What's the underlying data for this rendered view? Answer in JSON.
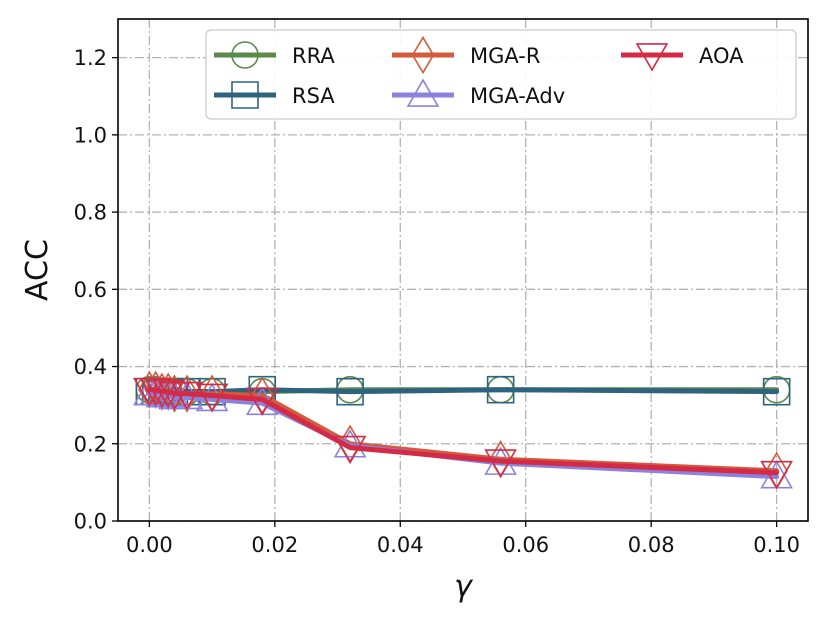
{
  "chart_data": {
    "type": "line",
    "xlabel": "γ",
    "ylabel": "ACC",
    "xlim": [
      -0.005,
      0.105
    ],
    "ylim": [
      0.0,
      1.3
    ],
    "xticks": [
      0.0,
      0.02,
      0.04,
      0.06,
      0.08,
      0.1
    ],
    "xtick_labels": [
      "0.00",
      "0.02",
      "0.04",
      "0.06",
      "0.08",
      "0.10"
    ],
    "yticks": [
      0.0,
      0.2,
      0.4,
      0.6,
      0.8,
      1.0,
      1.2
    ],
    "ytick_labels": [
      "0.0",
      "0.2",
      "0.4",
      "0.6",
      "0.8",
      "1.0",
      "1.2"
    ],
    "grid": true,
    "legend_position": "top-right",
    "series": [
      {
        "name": "RRA",
        "color": "#5a8a4a",
        "marker": "circle",
        "x": [
          0.0,
          0.001,
          0.002,
          0.003,
          0.004,
          0.006,
          0.01,
          0.018,
          0.032,
          0.056,
          0.1
        ],
        "y": [
          0.34,
          0.34,
          0.335,
          0.335,
          0.335,
          0.335,
          0.335,
          0.335,
          0.34,
          0.34,
          0.34
        ]
      },
      {
        "name": "RSA",
        "color": "#2e6380",
        "marker": "square",
        "x": [
          0.0,
          0.001,
          0.002,
          0.003,
          0.004,
          0.006,
          0.01,
          0.018,
          0.032,
          0.056,
          0.1
        ],
        "y": [
          0.335,
          0.335,
          0.335,
          0.335,
          0.335,
          0.335,
          0.335,
          0.34,
          0.335,
          0.34,
          0.335
        ]
      },
      {
        "name": "MGA-R",
        "color": "#d35a3c",
        "marker": "diamond",
        "x": [
          0.0,
          0.001,
          0.002,
          0.003,
          0.004,
          0.006,
          0.01,
          0.018,
          0.032,
          0.056,
          0.1
        ],
        "y": [
          0.34,
          0.34,
          0.335,
          0.335,
          0.33,
          0.33,
          0.33,
          0.325,
          0.2,
          0.16,
          0.13
        ]
      },
      {
        "name": "MGA-Adv",
        "color": "#8b82e0",
        "marker": "triangle-up",
        "x": [
          0.0,
          0.001,
          0.002,
          0.003,
          0.004,
          0.006,
          0.01,
          0.018,
          0.032,
          0.056,
          0.1
        ],
        "y": [
          0.33,
          0.33,
          0.325,
          0.325,
          0.32,
          0.32,
          0.315,
          0.305,
          0.195,
          0.15,
          0.115
        ]
      },
      {
        "name": "AOA",
        "color": "#d42a45",
        "marker": "triangle-down",
        "x": [
          0.0,
          0.001,
          0.002,
          0.003,
          0.004,
          0.006,
          0.01,
          0.018,
          0.032,
          0.056,
          0.1
        ],
        "y": [
          0.34,
          0.34,
          0.335,
          0.335,
          0.33,
          0.33,
          0.325,
          0.315,
          0.19,
          0.155,
          0.125
        ]
      }
    ]
  }
}
